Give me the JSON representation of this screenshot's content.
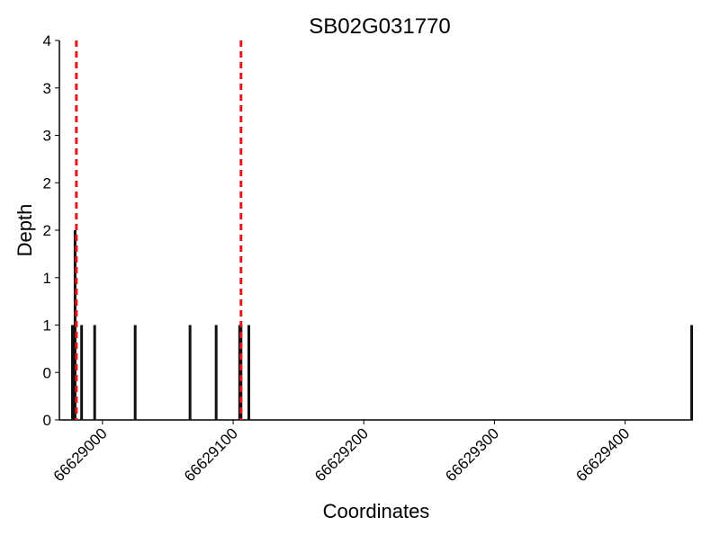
{
  "chart_data": {
    "type": "bar",
    "title": "SB02G031770",
    "x_label": "Coordinates",
    "y_label": "Depth",
    "x": [
      66628977,
      66628979,
      66628984,
      66628994,
      66629025,
      66629067,
      66629087,
      66629105,
      66629106,
      66629112,
      66629451
    ],
    "values": [
      1,
      2,
      1,
      1,
      1,
      1,
      1,
      1,
      1,
      1,
      1
    ],
    "color": "#111111",
    "markers": [
      66628980,
      66629106
    ],
    "marker_color": "#e8141a",
    "xlim": [
      66628967,
      66629452
    ],
    "xticks": [
      66629000,
      66629100,
      66629200,
      66629300,
      66629400
    ],
    "ylim": [
      0,
      4
    ],
    "yticks": [
      0,
      {
        "value": 0.5,
        "label": "0"
      },
      1,
      {
        "value": 1.5,
        "label": "1"
      },
      2,
      {
        "value": 2.5,
        "label": "2"
      },
      3,
      {
        "value": 3.5,
        "label": "3"
      },
      4
    ],
    "grid": false
  }
}
